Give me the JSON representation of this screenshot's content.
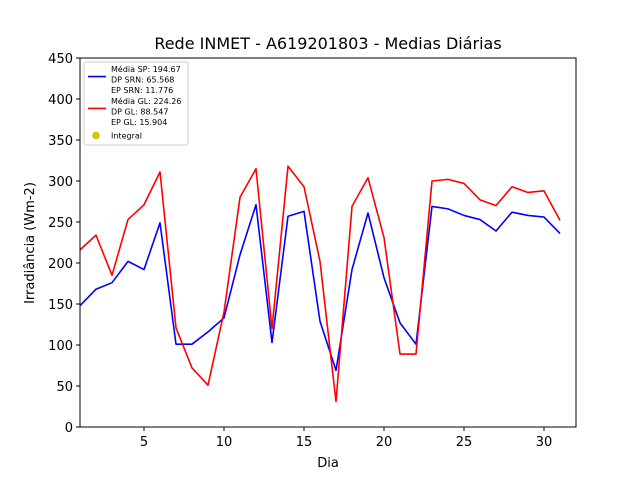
{
  "chart_data": {
    "type": "line",
    "title": "Rede INMET - A619201803 - Medias Diárias",
    "xlabel": "Dia",
    "ylabel": "Irradiância (Wm-2)",
    "xlim": [
      1,
      32
    ],
    "ylim": [
      0,
      450
    ],
    "xticks": [
      5,
      10,
      15,
      20,
      25,
      30
    ],
    "yticks": [
      0,
      50,
      100,
      150,
      200,
      250,
      300,
      350,
      400,
      450
    ],
    "grid": false,
    "legend_position": "upper-left",
    "x": [
      1,
      2,
      3,
      4,
      5,
      6,
      7,
      8,
      9,
      10,
      11,
      12,
      13,
      14,
      15,
      16,
      17,
      18,
      19,
      20,
      21,
      22,
      23,
      24,
      25,
      26,
      27,
      28,
      29,
      30,
      31
    ],
    "series": [
      {
        "color": "#0000ff",
        "legend_lines": [
          "Média SP: 194.67",
          "DP SRN: 65.568",
          "EP SRN: 11.776"
        ],
        "values": [
          148,
          168,
          176,
          202,
          192,
          249,
          101,
          101,
          116,
          133,
          210,
          271,
          103,
          257,
          263,
          129,
          69,
          192,
          261,
          182,
          127,
          101,
          269,
          266,
          258,
          253,
          239,
          262,
          258,
          256,
          236
        ]
      },
      {
        "color": "#ff0000",
        "legend_lines": [
          "Média GL: 224.26",
          "DP GL: 88.547",
          "EP GL: 15.904"
        ],
        "values": [
          216,
          234,
          185,
          253,
          271,
          311,
          121,
          72,
          51,
          140,
          280,
          315,
          120,
          318,
          293,
          202,
          31,
          269,
          304,
          231,
          89,
          89,
          300,
          302,
          297,
          277,
          270,
          293,
          286,
          288,
          252
        ]
      }
    ],
    "markers": [
      {
        "color": "#c8c800",
        "label": "Integral"
      }
    ]
  }
}
